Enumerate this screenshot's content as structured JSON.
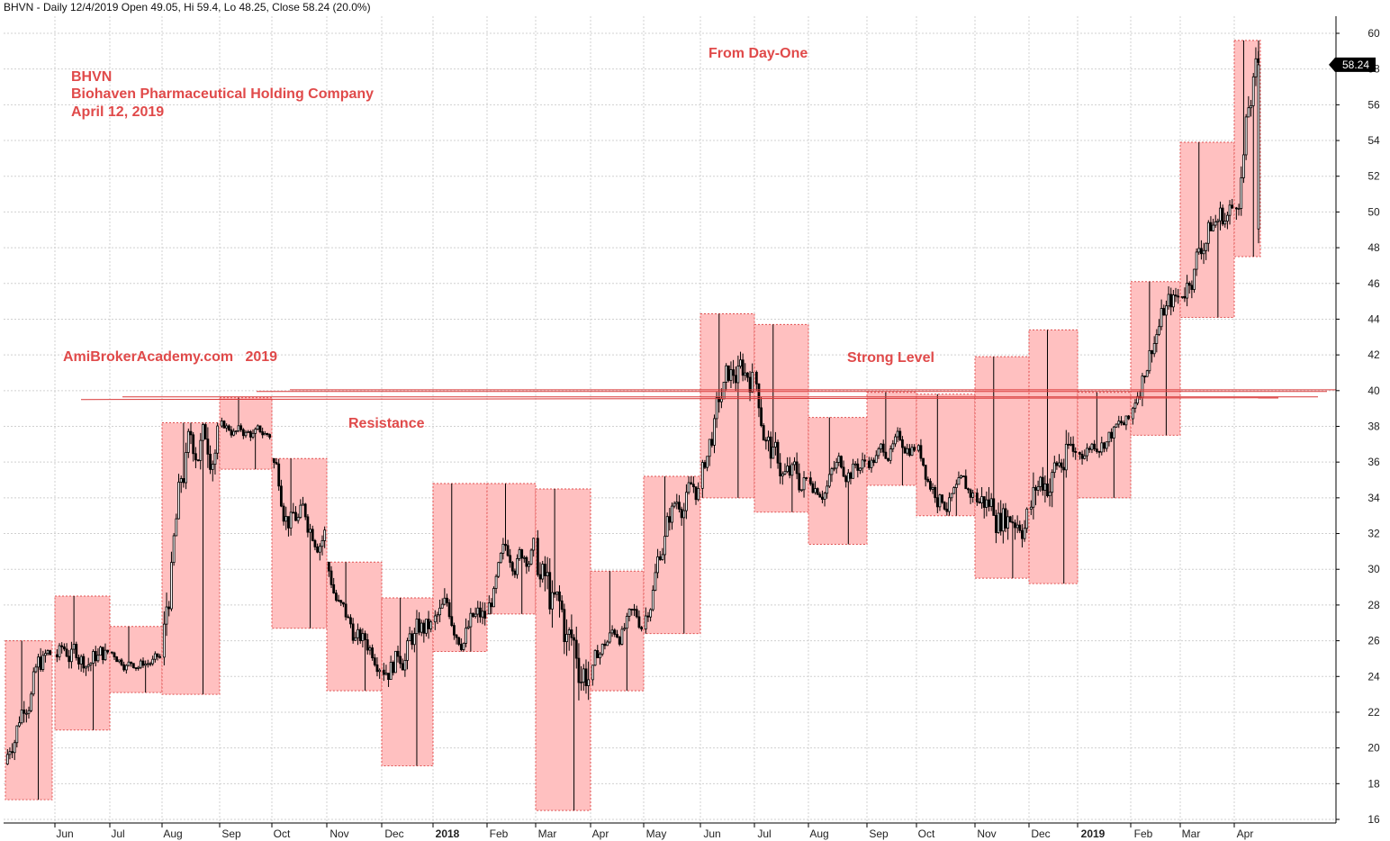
{
  "header": {
    "text": "BHVN - Daily 12/4/2019 Open 49.05, Hi 59.4, Lo 48.25, Close 58.24 (20.0%)"
  },
  "annotations": {
    "ticker": "BHVN",
    "company": "Biohaven Pharmaceutical Holding Company",
    "date": "April 12, 2019",
    "site": "AmiBrokerAcademy.com   2019",
    "from_day_one": "From Day-One",
    "strong_level": "Strong Level",
    "resistance": "Resistance"
  },
  "colors": {
    "box_fill": "#ffc0c0",
    "box_border": "#e05050",
    "line": "#d93a3a",
    "text": "#e04a4a",
    "candle": "#000000",
    "grid": "#d0d0d0",
    "last_price_bg": "#000000"
  },
  "chart_data": {
    "type": "candlestick",
    "title": "BHVN",
    "ylim": [
      16,
      61
    ],
    "y_ticks": [
      16,
      18,
      20,
      22,
      24,
      26,
      28,
      30,
      32,
      34,
      36,
      38,
      40,
      42,
      44,
      46,
      48,
      50,
      52,
      54,
      56,
      58,
      60
    ],
    "x_labels": [
      "Jun",
      "Jul",
      "Aug",
      "Sep",
      "Oct",
      "Nov",
      "Dec",
      "2018",
      "Feb",
      "Mar",
      "Apr",
      "May",
      "Jun",
      "Jul",
      "Aug",
      "Sep",
      "Oct",
      "Nov",
      "Dec",
      "2019",
      "Feb",
      "Mar",
      "Apr"
    ],
    "year_labels": [
      "2018",
      "2019"
    ],
    "last_price": "58.24",
    "grid": true,
    "resistance_level": 40,
    "monthly_ranges": [
      {
        "month": "May 2017",
        "low": 17.1,
        "high": 26.0
      },
      {
        "month": "Jun 2017",
        "low": 21.0,
        "high": 28.5
      },
      {
        "month": "Jul 2017",
        "low": 23.1,
        "high": 26.8
      },
      {
        "month": "Aug 2017",
        "low": 23.0,
        "high": 38.2
      },
      {
        "month": "Sep 2017",
        "low": 35.6,
        "high": 39.6
      },
      {
        "month": "Oct 2017",
        "low": 26.7,
        "high": 36.2
      },
      {
        "month": "Nov 2017",
        "low": 23.2,
        "high": 30.4
      },
      {
        "month": "Dec 2017",
        "low": 19.0,
        "high": 28.4
      },
      {
        "month": "Jan 2018",
        "low": 25.4,
        "high": 34.8
      },
      {
        "month": "Feb 2018",
        "low": 27.5,
        "high": 34.8
      },
      {
        "month": "Mar 2018",
        "low": 16.5,
        "high": 34.5
      },
      {
        "month": "Apr 2018",
        "low": 23.2,
        "high": 29.9
      },
      {
        "month": "May 2018",
        "low": 26.4,
        "high": 35.2
      },
      {
        "month": "Jun 2018",
        "low": 34.0,
        "high": 44.3
      },
      {
        "month": "Jul 2018",
        "low": 33.2,
        "high": 43.7
      },
      {
        "month": "Aug 2018",
        "low": 31.4,
        "high": 38.5
      },
      {
        "month": "Sep 2018",
        "low": 34.7,
        "high": 39.9
      },
      {
        "month": "Oct 2018",
        "low": 33.0,
        "high": 39.8
      },
      {
        "month": "Nov 2018",
        "low": 29.5,
        "high": 41.9
      },
      {
        "month": "Dec 2018",
        "low": 29.2,
        "high": 43.4
      },
      {
        "month": "Jan 2019",
        "low": 34.0,
        "high": 39.9
      },
      {
        "month": "Feb 2019",
        "low": 37.5,
        "high": 46.1
      },
      {
        "month": "Mar 2019",
        "low": 44.1,
        "high": 53.9
      },
      {
        "month": "Apr 2019",
        "low": 47.5,
        "high": 59.6
      }
    ],
    "monthly_closes": [
      25.0,
      25.2,
      24.9,
      37.9,
      37.5,
      32.5,
      25.5,
      26.5,
      27.0,
      31.2,
      24.8,
      27.0,
      34.5,
      41.0,
      34.6,
      36.0,
      37.0,
      34.0,
      33.5,
      36.2,
      38.0,
      45.0,
      50.0,
      58.24
    ]
  }
}
